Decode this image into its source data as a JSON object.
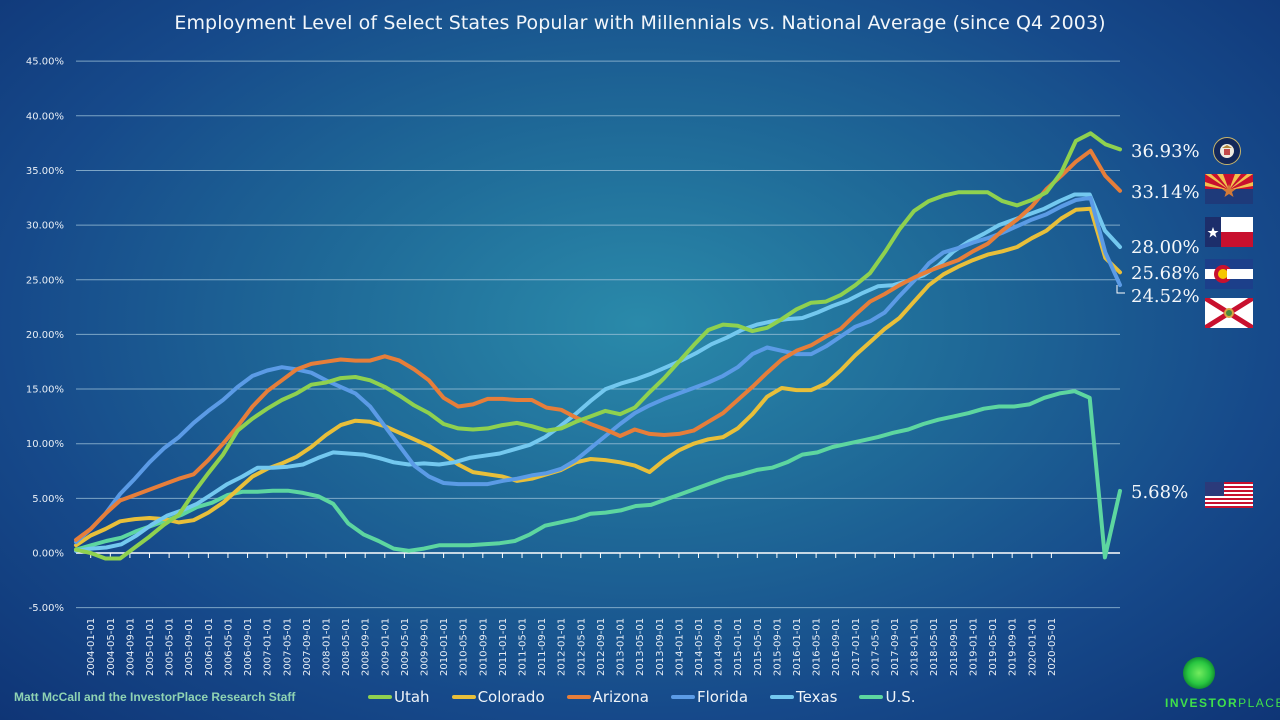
{
  "chart_data": {
    "type": "line",
    "title": "Employment Level of Select States Popular with Millennials vs. National Average (since Q4 2003)",
    "xlabel": "",
    "ylabel": "",
    "ylim": [
      -0.05,
      0.45
    ],
    "yticks": [
      -0.05,
      0,
      0.05,
      0.1,
      0.15,
      0.2,
      0.25,
      0.3,
      0.35,
      0.4,
      0.45
    ],
    "ytick_labels": [
      "-5.00%",
      "0.00%",
      "5.00%",
      "10.00%",
      "15.00%",
      "20.00%",
      "25.00%",
      "30.00%",
      "35.00%",
      "40.00%",
      "45.00%"
    ],
    "grid": true,
    "legend_position": "bottom",
    "xtick_labels": [
      "2004-01-01",
      "2004-05-01",
      "2004-09-01",
      "2005-01-01",
      "2005-05-01",
      "2005-09-01",
      "2006-01-01",
      "2006-05-01",
      "2006-09-01",
      "2007-01-01",
      "2007-05-01",
      "2007-09-01",
      "2008-01-01",
      "2008-05-01",
      "2008-09-01",
      "2009-01-01",
      "2009-05-01",
      "2009-09-01",
      "2010-01-01",
      "2010-05-01",
      "2010-09-01",
      "2011-01-01",
      "2011-05-01",
      "2011-09-01",
      "2012-01-01",
      "2012-05-01",
      "2012-09-01",
      "2013-01-01",
      "2013-05-01",
      "2013-09-01",
      "2014-01-01",
      "2014-05-01",
      "2014-09-01",
      "2015-01-01",
      "2015-05-01",
      "2015-09-01",
      "2016-01-01",
      "2016-05-01",
      "2016-09-01",
      "2017-01-01",
      "2017-05-01",
      "2017-09-01",
      "2018-01-01",
      "2018-05-01",
      "2018-09-01",
      "2019-01-01",
      "2019-05-01",
      "2019-09-01",
      "2020-01-01",
      "2020-05-01"
    ],
    "x_start": "2003-10-01",
    "x_step_months": 3,
    "series": [
      {
        "name": "Utah",
        "color": "#8fd14f",
        "end_label": "36.93%",
        "values": [
          0.003,
          0.0,
          -0.005,
          -0.005,
          0.005,
          0.015,
          0.026,
          0.035,
          0.055,
          0.073,
          0.09,
          0.112,
          0.123,
          0.132,
          0.14,
          0.146,
          0.154,
          0.156,
          0.16,
          0.161,
          0.158,
          0.152,
          0.144,
          0.135,
          0.128,
          0.118,
          0.114,
          0.113,
          0.114,
          0.117,
          0.119,
          0.116,
          0.112,
          0.114,
          0.12,
          0.125,
          0.13,
          0.127,
          0.133,
          0.147,
          0.16,
          0.175,
          0.19,
          0.204,
          0.209,
          0.208,
          0.203,
          0.206,
          0.214,
          0.223,
          0.229,
          0.23,
          0.236,
          0.245,
          0.256,
          0.275,
          0.296,
          0.313,
          0.322,
          0.327,
          0.33,
          0.33,
          0.33,
          0.322,
          0.318,
          0.323,
          0.33,
          0.348,
          0.377,
          0.384,
          0.374,
          0.3693
        ]
      },
      {
        "name": "Colorado",
        "color": "#e8bf3a",
        "end_label": "25.68%",
        "values": [
          0.007,
          0.016,
          0.022,
          0.029,
          0.031,
          0.032,
          0.031,
          0.028,
          0.03,
          0.037,
          0.046,
          0.058,
          0.07,
          0.077,
          0.082,
          0.088,
          0.097,
          0.108,
          0.117,
          0.121,
          0.12,
          0.116,
          0.11,
          0.104,
          0.098,
          0.09,
          0.081,
          0.074,
          0.072,
          0.07,
          0.066,
          0.068,
          0.072,
          0.076,
          0.083,
          0.086,
          0.085,
          0.083,
          0.08,
          0.074,
          0.085,
          0.094,
          0.1,
          0.104,
          0.106,
          0.114,
          0.127,
          0.143,
          0.151,
          0.149,
          0.149,
          0.155,
          0.167,
          0.181,
          0.193,
          0.205,
          0.215,
          0.23,
          0.245,
          0.255,
          0.262,
          0.268,
          0.273,
          0.276,
          0.28,
          0.288,
          0.295,
          0.306,
          0.314,
          0.315,
          0.27,
          0.2568
        ]
      },
      {
        "name": "Arizona",
        "color": "#e67e3a",
        "end_label": "33.14%",
        "values": [
          0.012,
          0.022,
          0.036,
          0.048,
          0.053,
          0.058,
          0.063,
          0.068,
          0.072,
          0.085,
          0.1,
          0.116,
          0.134,
          0.148,
          0.158,
          0.168,
          0.173,
          0.175,
          0.177,
          0.176,
          0.176,
          0.18,
          0.176,
          0.168,
          0.158,
          0.142,
          0.134,
          0.136,
          0.141,
          0.141,
          0.14,
          0.14,
          0.133,
          0.131,
          0.124,
          0.118,
          0.113,
          0.107,
          0.113,
          0.109,
          0.108,
          0.109,
          0.112,
          0.12,
          0.128,
          0.14,
          0.152,
          0.165,
          0.177,
          0.185,
          0.19,
          0.198,
          0.205,
          0.218,
          0.23,
          0.237,
          0.245,
          0.252,
          0.258,
          0.263,
          0.268,
          0.276,
          0.283,
          0.295,
          0.305,
          0.317,
          0.333,
          0.345,
          0.358,
          0.368,
          0.345,
          0.3314
        ]
      },
      {
        "name": "Florida",
        "color": "#5b9be6",
        "end_label": "24.52%",
        "values": [
          0.01,
          0.022,
          0.036,
          0.054,
          0.068,
          0.083,
          0.096,
          0.106,
          0.119,
          0.13,
          0.14,
          0.152,
          0.162,
          0.167,
          0.17,
          0.168,
          0.165,
          0.158,
          0.152,
          0.146,
          0.134,
          0.116,
          0.098,
          0.08,
          0.07,
          0.064,
          0.063,
          0.063,
          0.063,
          0.066,
          0.068,
          0.071,
          0.073,
          0.077,
          0.085,
          0.096,
          0.107,
          0.118,
          0.128,
          0.135,
          0.141,
          0.146,
          0.151,
          0.156,
          0.162,
          0.17,
          0.182,
          0.188,
          0.185,
          0.182,
          0.182,
          0.189,
          0.198,
          0.207,
          0.212,
          0.22,
          0.235,
          0.249,
          0.265,
          0.275,
          0.279,
          0.284,
          0.288,
          0.293,
          0.299,
          0.305,
          0.31,
          0.317,
          0.323,
          0.325,
          0.275,
          0.2452
        ]
      },
      {
        "name": "Texas",
        "color": "#73c8ef",
        "end_label": "28.00%",
        "values": [
          0.002,
          0.004,
          0.005,
          0.008,
          0.016,
          0.026,
          0.034,
          0.039,
          0.045,
          0.054,
          0.063,
          0.07,
          0.078,
          0.078,
          0.079,
          0.081,
          0.087,
          0.092,
          0.091,
          0.09,
          0.087,
          0.083,
          0.081,
          0.082,
          0.081,
          0.083,
          0.087,
          0.089,
          0.091,
          0.095,
          0.099,
          0.106,
          0.116,
          0.127,
          0.139,
          0.15,
          0.155,
          0.159,
          0.164,
          0.17,
          0.176,
          0.183,
          0.191,
          0.197,
          0.204,
          0.209,
          0.212,
          0.214,
          0.215,
          0.22,
          0.226,
          0.231,
          0.238,
          0.244,
          0.245,
          0.249,
          0.254,
          0.263,
          0.276,
          0.285,
          0.292,
          0.3,
          0.305,
          0.31,
          0.315,
          0.322,
          0.328,
          0.328,
          0.295,
          0.28
        ]
      },
      {
        "name": "U.S.",
        "color": "#5dd6a0",
        "end_label": "5.68%",
        "values": [
          0.003,
          0.007,
          0.011,
          0.014,
          0.02,
          0.025,
          0.03,
          0.035,
          0.042,
          0.046,
          0.053,
          0.056,
          0.056,
          0.057,
          0.057,
          0.055,
          0.052,
          0.045,
          0.027,
          0.017,
          0.011,
          0.004,
          0.002,
          0.004,
          0.007,
          0.007,
          0.007,
          0.008,
          0.009,
          0.011,
          0.017,
          0.025,
          0.028,
          0.031,
          0.036,
          0.037,
          0.039,
          0.043,
          0.044,
          0.049,
          0.054,
          0.059,
          0.064,
          0.069,
          0.072,
          0.076,
          0.078,
          0.083,
          0.09,
          0.092,
          0.097,
          0.1,
          0.103,
          0.106,
          0.11,
          0.113,
          0.118,
          0.122,
          0.125,
          0.128,
          0.132,
          0.134,
          0.134,
          0.136,
          0.142,
          0.146,
          0.148,
          0.142,
          -0.004,
          0.0568
        ]
      }
    ]
  },
  "footer": {
    "credit": "Matt McCall and the InvestorPlace Research Staff",
    "logo_bold": "INVESTOR",
    "logo_light": "PLACE"
  },
  "flags": [
    {
      "state": "Utah",
      "icon": "utah-seal-icon"
    },
    {
      "state": "Arizona",
      "icon": "arizona-flag-icon"
    },
    {
      "state": "Texas",
      "icon": "texas-flag-icon"
    },
    {
      "state": "Colorado",
      "icon": "colorado-flag-icon"
    },
    {
      "state": "Florida",
      "icon": "florida-flag-icon"
    },
    {
      "state": "U.S.",
      "icon": "us-flag-icon"
    }
  ]
}
